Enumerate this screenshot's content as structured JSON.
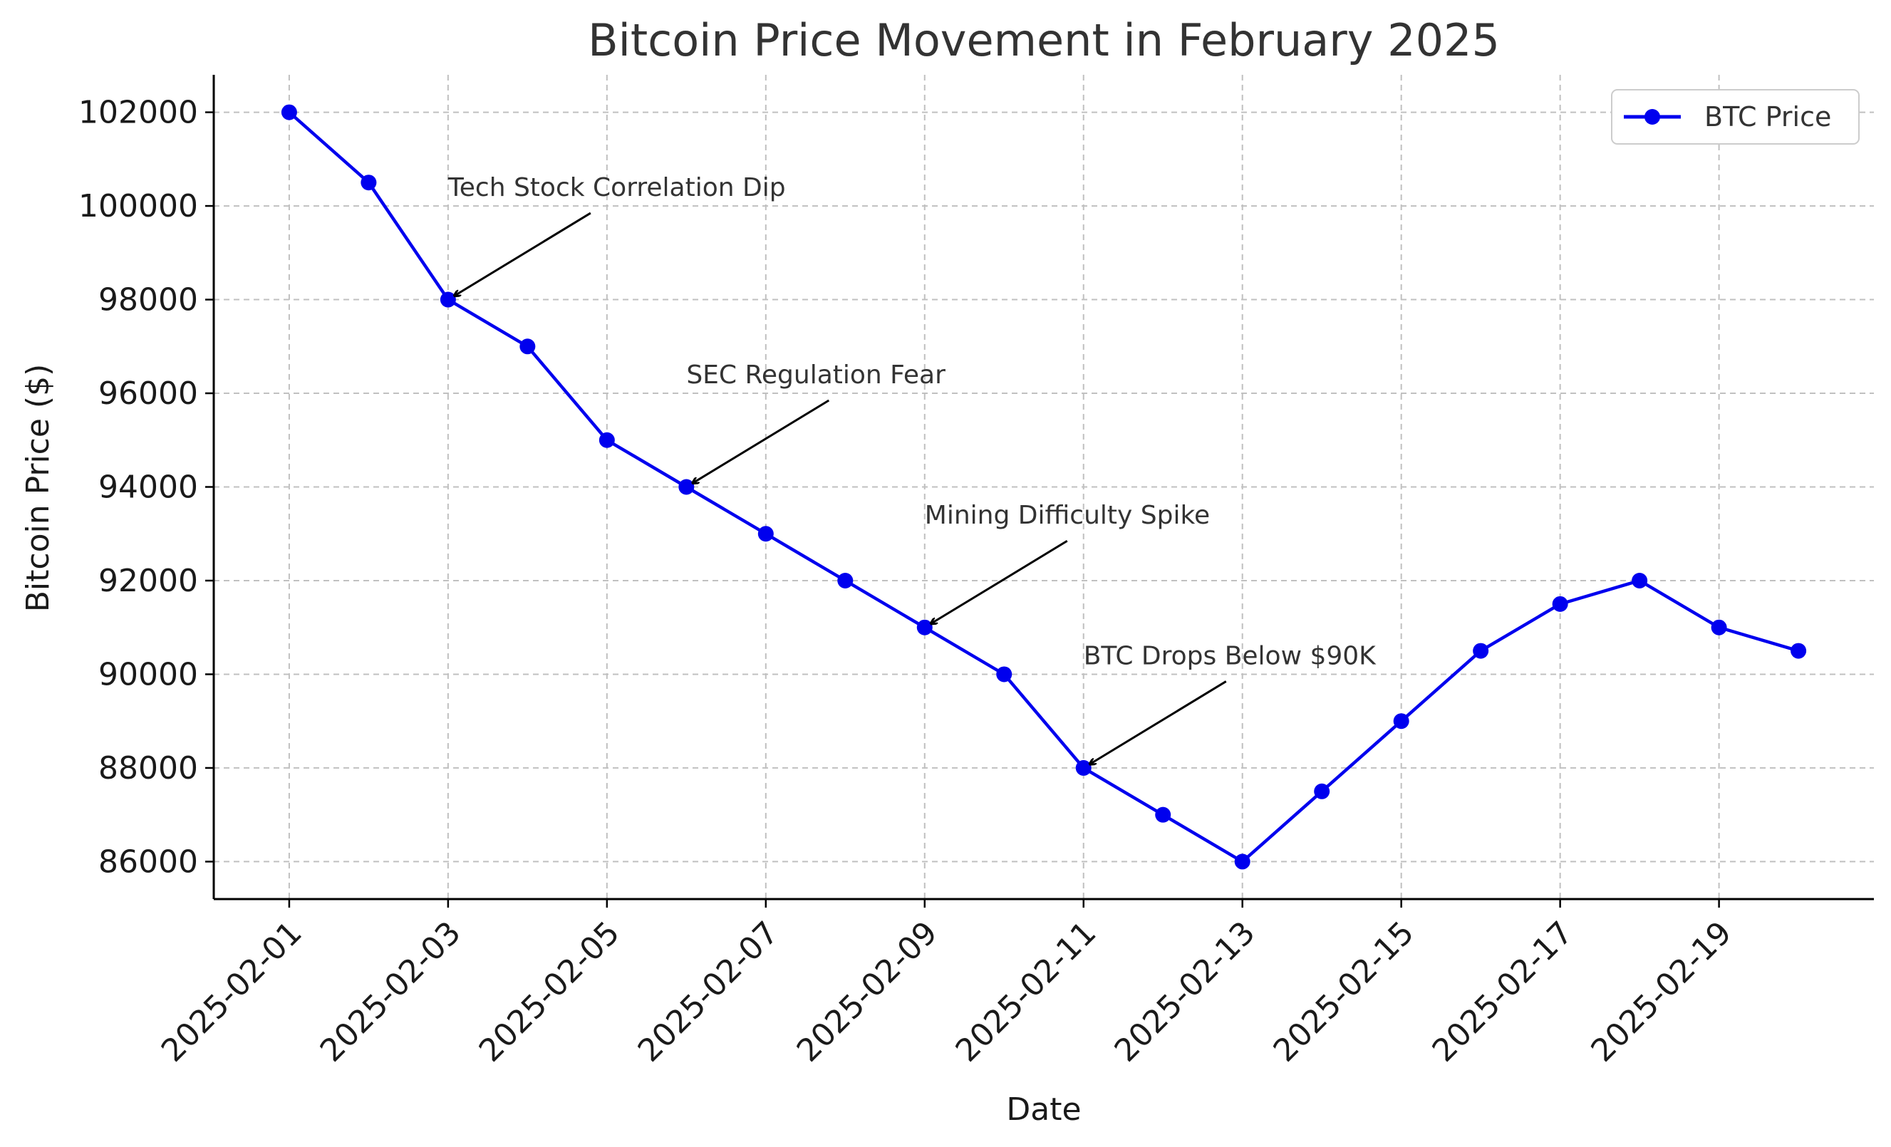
{
  "chart_data": {
    "type": "line",
    "title": "Bitcoin Price Movement in February 2025",
    "xlabel": "Date",
    "ylabel": "Bitcoin Price ($)",
    "x": [
      "2025-02-01",
      "2025-02-02",
      "2025-02-03",
      "2025-02-04",
      "2025-02-05",
      "2025-02-06",
      "2025-02-07",
      "2025-02-08",
      "2025-02-09",
      "2025-02-10",
      "2025-02-11",
      "2025-02-12",
      "2025-02-13",
      "2025-02-14",
      "2025-02-15",
      "2025-02-16",
      "2025-02-17",
      "2025-02-18",
      "2025-02-19",
      "2025-02-20"
    ],
    "x_tick_labels": [
      "2025-02-01",
      "2025-02-03",
      "2025-02-05",
      "2025-02-07",
      "2025-02-09",
      "2025-02-11",
      "2025-02-13",
      "2025-02-15",
      "2025-02-17",
      "2025-02-19"
    ],
    "series": [
      {
        "name": "BTC Price",
        "color": "#0000ee",
        "values": [
          102000,
          100500,
          98000,
          97000,
          95000,
          94000,
          93000,
          92000,
          91000,
          90000,
          88000,
          87000,
          86000,
          87500,
          89000,
          90500,
          91500,
          92000,
          91000,
          90500
        ]
      }
    ],
    "y_ticks": [
      86000,
      88000,
      90000,
      92000,
      94000,
      96000,
      98000,
      100000,
      102000
    ],
    "ylim": [
      85200,
      102800
    ],
    "xlim": [
      -0.95,
      19.95
    ],
    "grid": true,
    "grid_color": "#c0c0c0",
    "legend": {
      "position": "top-right",
      "entries": [
        "BTC Price"
      ]
    },
    "annotations": [
      {
        "text": "Tech Stock Correlation Dip",
        "point_index": 2,
        "text_x_index": 2,
        "text_value": 100000
      },
      {
        "text": "SEC Regulation Fear",
        "point_index": 5,
        "text_x_index": 5,
        "text_value": 96000
      },
      {
        "text": "Mining Difficulty Spike",
        "point_index": 8,
        "text_x_index": 8,
        "text_value": 93000
      },
      {
        "text": "BTC Drops Below $90K",
        "point_index": 10,
        "text_x_index": 10,
        "text_value": 90000
      }
    ]
  }
}
